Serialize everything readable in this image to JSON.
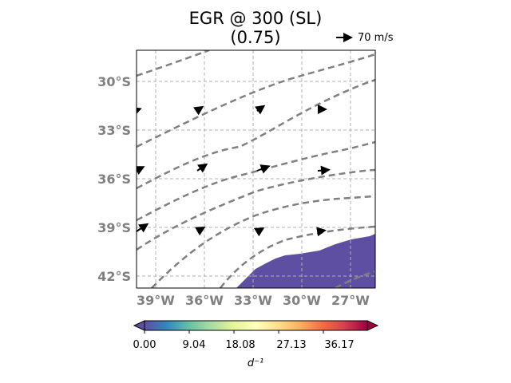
{
  "map": {
    "title_line1": "EGR @ 300 (SL)",
    "title_line2": "(0.75)",
    "reference_arrow_label": "70 m/s",
    "lon_range": [
      -40,
      -25
    ],
    "lat_range": [
      -43,
      -28.5
    ],
    "lon_ticks": [
      {
        "value": -39,
        "label": "39°W"
      },
      {
        "value": -36,
        "label": "36°W"
      },
      {
        "value": -33,
        "label": "33°W"
      },
      {
        "value": -30,
        "label": "30°W"
      },
      {
        "value": -27,
        "label": "27°W"
      }
    ],
    "lat_ticks": [
      {
        "value": -30,
        "label": "30°S"
      },
      {
        "value": -33,
        "label": "33°S"
      },
      {
        "value": -36,
        "label": "36°S"
      },
      {
        "value": -39,
        "label": "39°S"
      },
      {
        "value": -42,
        "label": "42°S"
      }
    ],
    "grid": true,
    "fill_color": "#5e4fa2",
    "contour_color": "#808080"
  },
  "colorbar": {
    "colormap": "Spectral_r",
    "range": [
      0,
      45.2
    ],
    "label": "d⁻¹",
    "ticks": [
      {
        "value": 0.0,
        "label": "0.00"
      },
      {
        "value": 9.04,
        "label": "9.04"
      },
      {
        "value": 18.08,
        "label": "18.08"
      },
      {
        "value": 27.13,
        "label": "27.13"
      },
      {
        "value": 36.17,
        "label": "36.17"
      }
    ]
  }
}
